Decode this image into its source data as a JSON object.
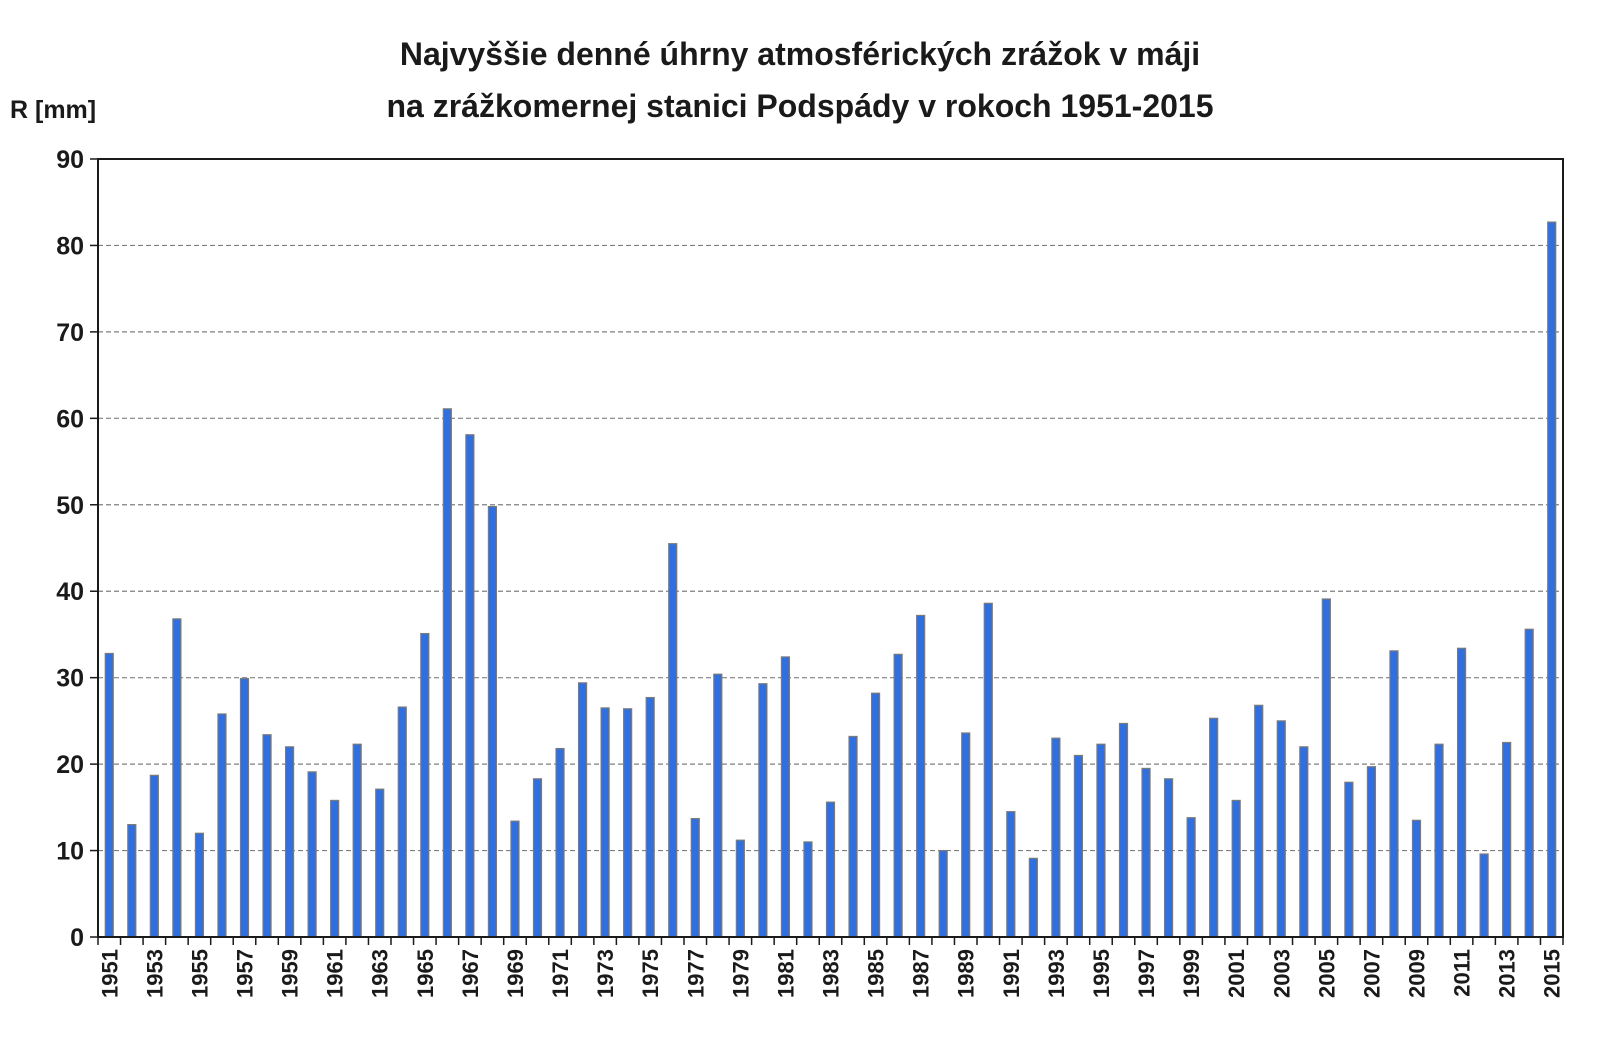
{
  "chart_data": {
    "type": "bar",
    "title_lines": [
      "Najvyššie denné úhrny atmosférických zrážok v máji",
      "na zrážkomernej stanici Podspády v rokoch 1951-2015"
    ],
    "ylabel": "R [mm]",
    "xlabel": "",
    "ylim": [
      0,
      90
    ],
    "yticks": [
      0,
      10,
      20,
      30,
      40,
      50,
      60,
      70,
      80,
      90
    ],
    "grid": "horizontal dashed",
    "legend": "none",
    "bar_color": "#2f6fe0",
    "categories": [
      "1951",
      "1952",
      "1953",
      "1954",
      "1955",
      "1956",
      "1957",
      "1958",
      "1959",
      "1960",
      "1961",
      "1962",
      "1963",
      "1964",
      "1965",
      "1966",
      "1967",
      "1968",
      "1969",
      "1970",
      "1971",
      "1972",
      "1973",
      "1974",
      "1975",
      "1976",
      "1977",
      "1978",
      "1979",
      "1980",
      "1981",
      "1982",
      "1983",
      "1984",
      "1985",
      "1986",
      "1987",
      "1988",
      "1989",
      "1990",
      "1991",
      "1992",
      "1993",
      "1994",
      "1995",
      "1996",
      "1997",
      "1998",
      "1999",
      "2000",
      "2001",
      "2002",
      "2003",
      "2004",
      "2005",
      "2006",
      "2007",
      "2008",
      "2009",
      "2010",
      "2011",
      "2012",
      "2013",
      "2014",
      "2015"
    ],
    "x_tick_labels": [
      "1951",
      "1953",
      "1955",
      "1957",
      "1959",
      "1961",
      "1963",
      "1965",
      "1967",
      "1969",
      "1971",
      "1973",
      "1975",
      "1977",
      "1979",
      "1981",
      "1983",
      "1985",
      "1987",
      "1989",
      "1991",
      "1993",
      "1995",
      "1997",
      "1999",
      "2001",
      "2003",
      "2005",
      "2007",
      "2009",
      "2011",
      "2013",
      "2015"
    ],
    "values": [
      32.8,
      13.0,
      18.7,
      36.8,
      12.0,
      25.8,
      29.9,
      23.4,
      22.0,
      19.1,
      15.8,
      22.3,
      17.1,
      26.6,
      35.1,
      61.1,
      58.1,
      49.8,
      13.4,
      18.3,
      21.8,
      29.4,
      26.5,
      26.4,
      27.7,
      45.5,
      13.7,
      30.4,
      11.2,
      29.3,
      32.4,
      11.0,
      15.6,
      23.2,
      28.2,
      32.7,
      37.2,
      10.0,
      23.6,
      38.6,
      14.5,
      9.1,
      23.0,
      21.0,
      22.3,
      24.7,
      19.5,
      18.3,
      13.8,
      25.3,
      15.8,
      26.8,
      25.0,
      22.0,
      39.1,
      17.9,
      19.7,
      33.1,
      13.5,
      22.3,
      33.4,
      9.6,
      22.5,
      35.6,
      82.7
    ]
  }
}
